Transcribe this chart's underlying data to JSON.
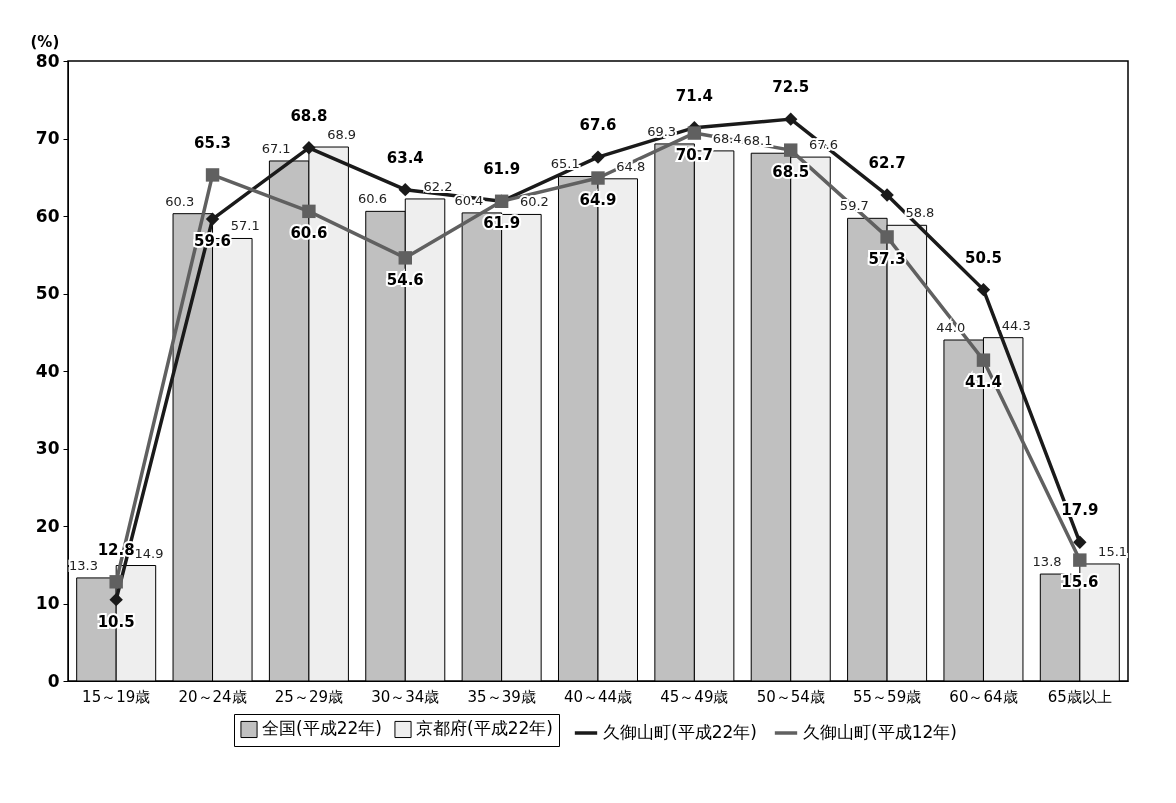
{
  "chart_data": {
    "type": "bar",
    "ylabel": "(%)",
    "categories": [
      "15～19歳",
      "20～24歳",
      "25～29歳",
      "30～34歳",
      "35～39歳",
      "40～44歳",
      "45～49歳",
      "50～54歳",
      "55～59歳",
      "60～64歳",
      "65歳以上"
    ],
    "series": [
      {
        "name": "全国(平成22年)",
        "color": "#c0c0c0",
        "values": [
          13.3,
          60.3,
          67.1,
          60.6,
          60.4,
          65.1,
          69.3,
          68.1,
          59.7,
          44.0,
          13.8
        ],
        "value_labels": [
          "13.3",
          "60.3",
          "67.1",
          "60.6",
          "60.4",
          "65.1",
          "69.3",
          "68.1",
          "59.7",
          "44.0",
          "13.8"
        ]
      },
      {
        "name": "京都府(平成22年)",
        "color": "#eeeeee",
        "values": [
          14.9,
          57.1,
          68.9,
          62.2,
          60.2,
          64.8,
          68.4,
          67.6,
          58.8,
          44.3,
          15.1
        ]
      },
      {
        "name": "久御山町(平成22年)",
        "type": "line",
        "marker": "diamond",
        "color": "#1a1a1a",
        "values": [
          10.5,
          59.6,
          68.8,
          63.4,
          61.9,
          67.6,
          71.4,
          72.5,
          62.7,
          50.5,
          17.9
        ]
      },
      {
        "name": "久御山町(平成12年)",
        "type": "line",
        "marker": "square",
        "color": "#606060",
        "values": [
          12.8,
          65.3,
          60.6,
          54.6,
          61.9,
          64.9,
          70.7,
          68.5,
          57.3,
          41.4,
          15.6
        ]
      }
    ],
    "ylim": [
      0,
      80
    ],
    "yticks": [
      0,
      10,
      20,
      30,
      40,
      50,
      60,
      70,
      80
    ],
    "grid": false,
    "legend": "bottom",
    "data_labels": true
  }
}
